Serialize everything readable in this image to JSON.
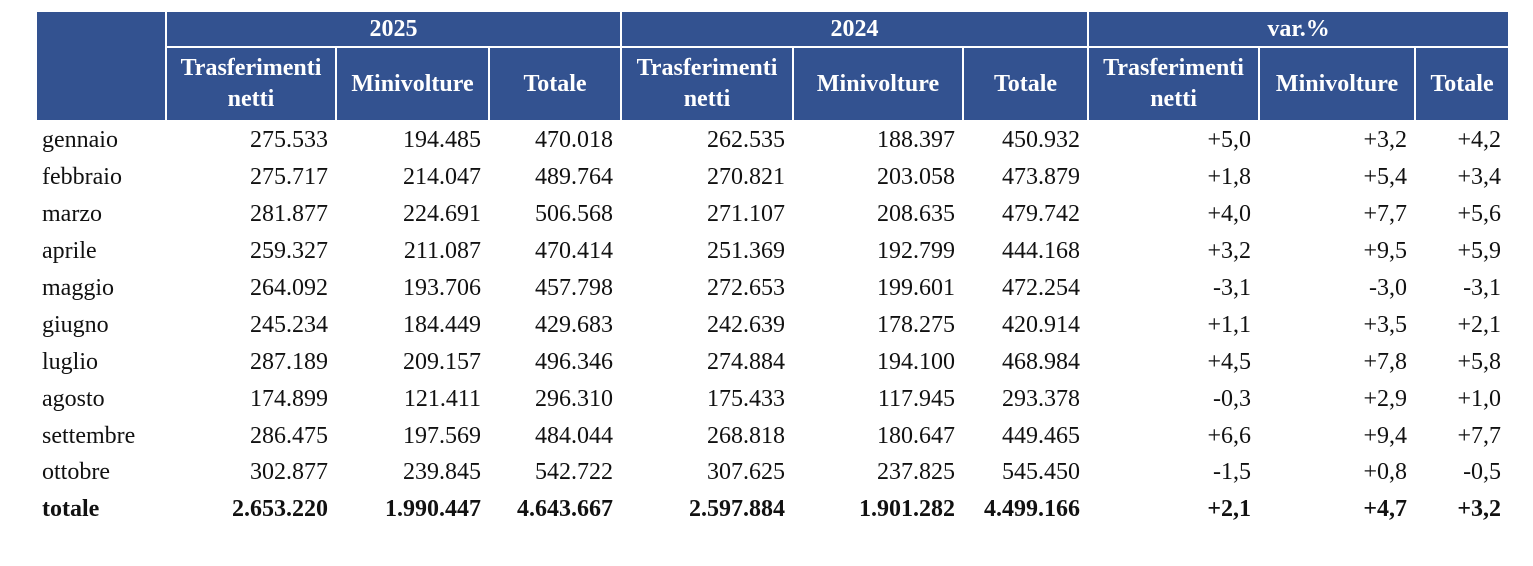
{
  "table": {
    "groups": [
      "2025",
      "2024",
      "var.%"
    ],
    "subheaders": [
      "Trasferimenti netti",
      "Minivolture",
      "Totale",
      "Trasferimenti netti",
      "Minivolture",
      "Totale",
      "Trasferimenti netti",
      "Minivolture",
      "Totale"
    ],
    "rows": [
      [
        "gennaio",
        "275.533",
        "194.485",
        "470.018",
        "262.535",
        "188.397",
        "450.932",
        "+5,0",
        "+3,2",
        "+4,2"
      ],
      [
        "febbraio",
        "275.717",
        "214.047",
        "489.764",
        "270.821",
        "203.058",
        "473.879",
        "+1,8",
        "+5,4",
        "+3,4"
      ],
      [
        "marzo",
        "281.877",
        "224.691",
        "506.568",
        "271.107",
        "208.635",
        "479.742",
        "+4,0",
        "+7,7",
        "+5,6"
      ],
      [
        "aprile",
        "259.327",
        "211.087",
        "470.414",
        "251.369",
        "192.799",
        "444.168",
        "+3,2",
        "+9,5",
        "+5,9"
      ],
      [
        "maggio",
        "264.092",
        "193.706",
        "457.798",
        "272.653",
        "199.601",
        "472.254",
        "-3,1",
        "-3,0",
        "-3,1"
      ],
      [
        "giugno",
        "245.234",
        "184.449",
        "429.683",
        "242.639",
        "178.275",
        "420.914",
        "+1,1",
        "+3,5",
        "+2,1"
      ],
      [
        "luglio",
        "287.189",
        "209.157",
        "496.346",
        "274.884",
        "194.100",
        "468.984",
        "+4,5",
        "+7,8",
        "+5,8"
      ],
      [
        "agosto",
        "174.899",
        "121.411",
        "296.310",
        "175.433",
        "117.945",
        "293.378",
        "-0,3",
        "+2,9",
        "+1,0"
      ],
      [
        "settembre",
        "286.475",
        "197.569",
        "484.044",
        "268.818",
        "180.647",
        "449.465",
        "+6,6",
        "+9,4",
        "+7,7"
      ],
      [
        "ottobre",
        "302.877",
        "239.845",
        "542.722",
        "307.625",
        "237.825",
        "545.450",
        "-1,5",
        "+0,8",
        "-0,5"
      ]
    ],
    "total": [
      "totale",
      "2.653.220",
      "1.990.447",
      "4.643.667",
      "2.597.884",
      "1.901.282",
      "4.499.166",
      "+2,1",
      "+4,7",
      "+3,2"
    ]
  }
}
